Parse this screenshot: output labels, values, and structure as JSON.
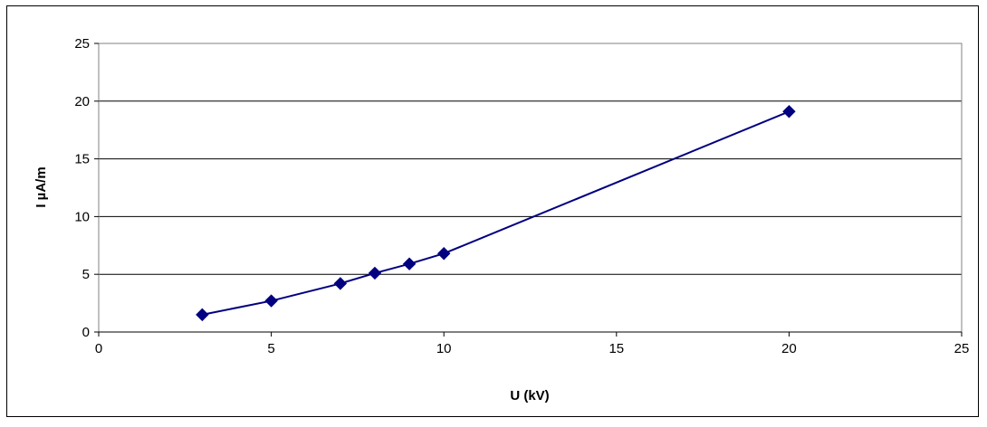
{
  "chart_data": {
    "type": "scatter",
    "title": "",
    "xlabel": "U (kV)",
    "ylabel": "I µA/m",
    "xlim": [
      0,
      25
    ],
    "ylim": [
      0,
      25
    ],
    "xticks": [
      0,
      5,
      10,
      15,
      20,
      25
    ],
    "yticks": [
      0,
      5,
      10,
      15,
      20,
      25
    ],
    "grid": "horizontal",
    "legend": "none",
    "marker": "diamond",
    "line_color": "#000080",
    "marker_color": "#000080",
    "series": [
      {
        "x": [
          3,
          5,
          7,
          8,
          9,
          10,
          20
        ],
        "y": [
          1.5,
          2.7,
          4.2,
          5.1,
          5.9,
          6.8,
          19.1
        ]
      }
    ]
  }
}
